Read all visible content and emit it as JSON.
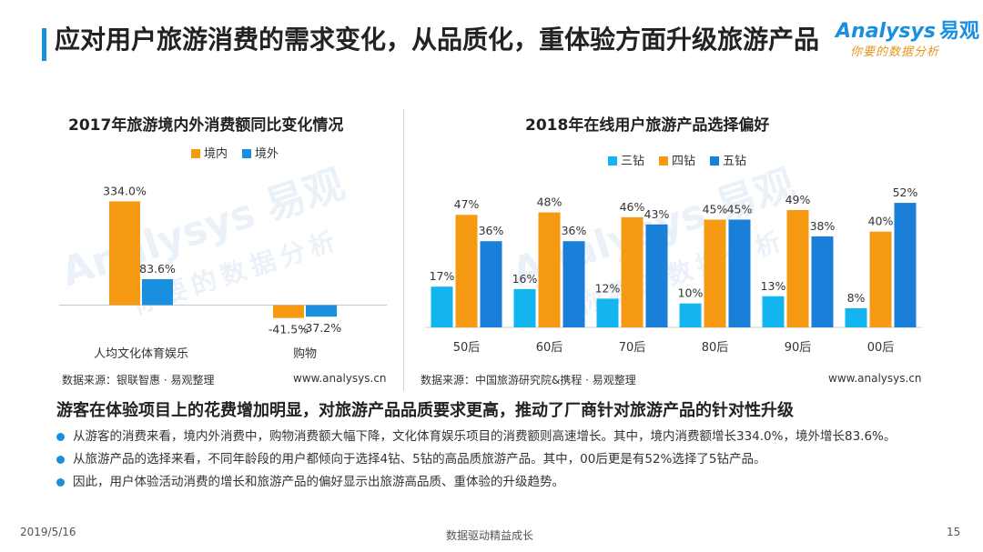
{
  "page": {
    "title": "应对用户旅游消费的需求变化，从品质化，重体验方面升级旅游产品",
    "logo": {
      "brand": "Analysys",
      "brand_cn": "易观",
      "slogan": "你要的数据分析"
    },
    "subheading": "游客在体验项目上的花费增加明显，对旅游产品品质要求更高，推动了厂商针对旅游产品的针对性升级",
    "bullets": [
      "从游客的消费来看，境内外消费中，购物消费额大幅下降，文化体育娱乐项目的消费额则高速增长。其中，境内消费额增长334.0%，境外增长83.6%。",
      "从旅游产品的选择来看，不同年龄段的用户都倾向于选择4钻、5钻的高品质旅游产品。其中，00后更是有52%选择了5钻产品。",
      "因此，用户体验活动消费的增长和旅游产品的偏好显示出旅游高品质、重体验的升级趋势。"
    ],
    "footer": {
      "date": "2019/5/16",
      "center": "数据驱动精益成长",
      "page_number": "15"
    },
    "watermark": {
      "text": "Analysys 易观",
      "sub": "你要的数据分析"
    }
  },
  "chart_data": [
    {
      "type": "bar",
      "title": "2017年旅游境内外消费额同比变化情况",
      "categories": [
        "人均文化体育娱乐",
        "购物"
      ],
      "series": [
        {
          "name": "境内",
          "values": [
            334.0,
            -41.5
          ],
          "color": "#f59a12"
        },
        {
          "name": "境外",
          "values": [
            83.6,
            -37.2
          ],
          "color": "#1a8fe0"
        }
      ],
      "value_suffix": "%",
      "value_decimals": 1,
      "ylim": [
        -60,
        350
      ],
      "legend": "top",
      "grid": false,
      "source": "数据来源：银联智惠 · 易观整理",
      "url": "www.analysys.cn"
    },
    {
      "type": "bar",
      "title": "2018年在线用户旅游产品选择偏好",
      "categories": [
        "50后",
        "60后",
        "70后",
        "80后",
        "90后",
        "00后"
      ],
      "series": [
        {
          "name": "三钻",
          "values": [
            17,
            16,
            12,
            10,
            13,
            8
          ],
          "color": "#13b5f0"
        },
        {
          "name": "四钻",
          "values": [
            47,
            48,
            46,
            45,
            49,
            40
          ],
          "color": "#f59a12"
        },
        {
          "name": "五钻",
          "values": [
            36,
            36,
            43,
            45,
            38,
            52
          ],
          "color": "#1a7fd8"
        }
      ],
      "value_suffix": "%",
      "value_decimals": 0,
      "ylim": [
        0,
        60
      ],
      "legend": "top",
      "grid": false,
      "source": "数据来源：中国旅游研究院&携程 · 易观整理",
      "url": "www.analysys.cn"
    }
  ]
}
